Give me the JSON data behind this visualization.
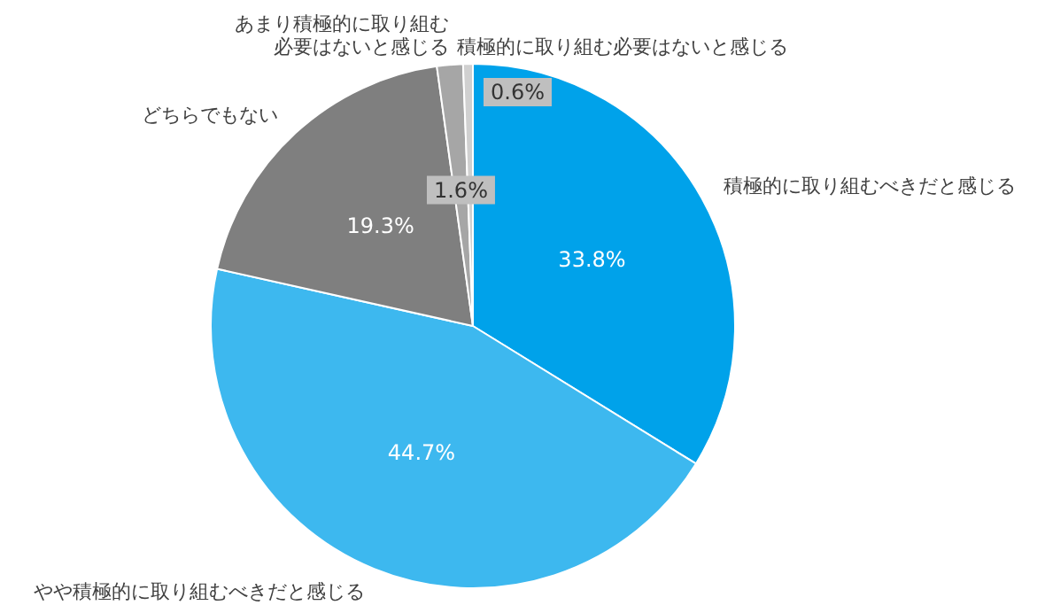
{
  "chart_data": {
    "type": "pie",
    "categories": [
      "積極的に取り組むべきだと感じる",
      "やや積極的に取り組むべきだと感じる",
      "どちらでもない",
      "あまり積極的に取り組む必要はないと感じる",
      "積極的に取り組む必要はないと感じる"
    ],
    "values": [
      33.8,
      44.7,
      19.3,
      1.6,
      0.6
    ],
    "colors": [
      "#00a2ea",
      "#3db8ef",
      "#7f7f7f",
      "#a6a6a6",
      "#d0d0d0"
    ],
    "value_labels": [
      "33.8%",
      "44.7%",
      "19.3%",
      "1.6%",
      "0.6%"
    ]
  }
}
